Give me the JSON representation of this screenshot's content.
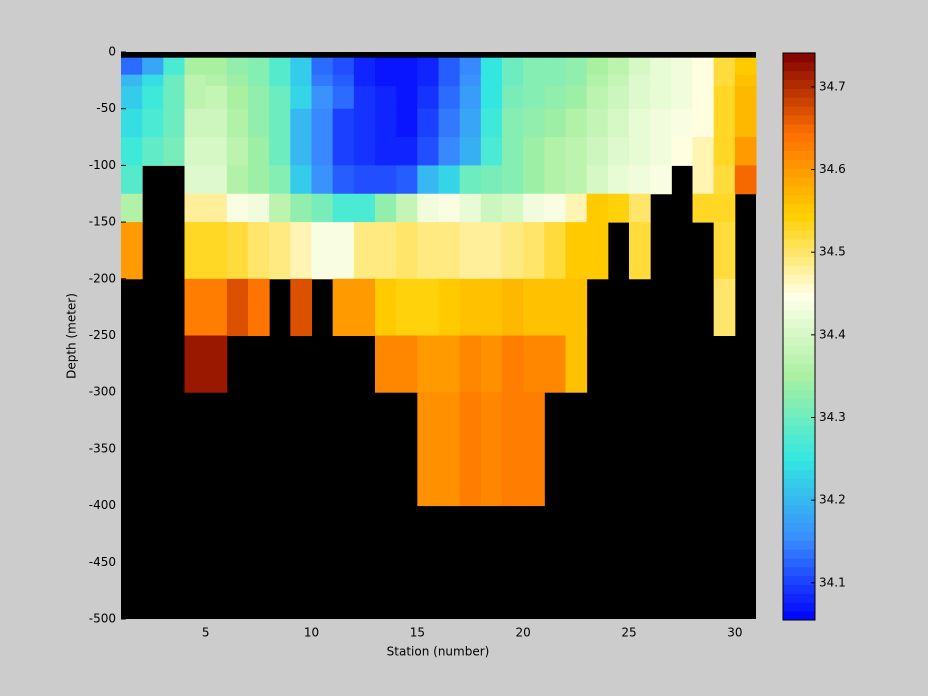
{
  "chart_data": {
    "type": "heatmap",
    "xlabel": "Station (number)",
    "ylabel": "Depth (meter)",
    "x_edges": [
      1,
      2,
      3,
      4,
      5,
      6,
      7,
      8,
      9,
      10,
      11,
      12,
      13,
      14,
      15,
      16,
      17,
      18,
      19,
      20,
      21,
      22,
      23,
      24,
      25,
      26,
      27,
      28,
      29,
      30,
      31
    ],
    "y_edges": [
      -5,
      -20,
      -30,
      -50,
      -75,
      -100,
      -125,
      -150,
      -200,
      -250,
      -300,
      -400,
      -500
    ],
    "z": [
      [
        34.13,
        34.18,
        34.27,
        34.35,
        34.35,
        34.33,
        34.32,
        34.28,
        34.22,
        34.13,
        34.11,
        34.08,
        34.07,
        34.07,
        34.08,
        34.12,
        34.15,
        34.25,
        34.3,
        34.32,
        34.32,
        34.33,
        34.35,
        34.37,
        34.4,
        34.42,
        34.43,
        34.45,
        34.52,
        34.55
      ],
      [
        34.2,
        34.24,
        34.3,
        34.37,
        34.36,
        34.34,
        34.32,
        34.28,
        34.22,
        34.14,
        34.12,
        34.08,
        34.07,
        34.07,
        34.08,
        34.12,
        34.16,
        34.25,
        34.3,
        34.32,
        34.32,
        34.33,
        34.36,
        34.38,
        34.41,
        34.42,
        34.43,
        34.45,
        34.52,
        34.56
      ],
      [
        34.22,
        34.26,
        34.3,
        34.37,
        34.38,
        34.35,
        34.33,
        34.3,
        34.23,
        34.16,
        34.13,
        34.09,
        34.08,
        34.07,
        34.09,
        34.13,
        34.17,
        34.25,
        34.31,
        34.32,
        34.33,
        34.34,
        34.37,
        34.39,
        34.41,
        34.42,
        34.43,
        34.45,
        34.53,
        34.57
      ],
      [
        34.24,
        34.27,
        34.3,
        34.39,
        34.39,
        34.36,
        34.33,
        34.3,
        34.2,
        34.15,
        34.1,
        34.09,
        34.08,
        34.07,
        34.1,
        34.14,
        34.18,
        34.26,
        34.32,
        34.33,
        34.34,
        34.36,
        34.38,
        34.4,
        34.42,
        34.43,
        34.44,
        34.45,
        34.53,
        34.57
      ],
      [
        34.26,
        34.29,
        34.31,
        34.4,
        34.4,
        34.37,
        34.34,
        34.3,
        34.2,
        34.15,
        34.1,
        34.09,
        34.08,
        34.08,
        34.11,
        34.15,
        34.19,
        34.27,
        34.32,
        34.34,
        34.36,
        34.37,
        34.39,
        34.41,
        34.42,
        34.43,
        34.45,
        34.47,
        34.53,
        34.6
      ],
      [
        34.28,
        null,
        null,
        34.41,
        34.41,
        34.36,
        34.34,
        34.32,
        34.22,
        34.16,
        34.12,
        34.11,
        34.11,
        34.12,
        34.2,
        34.23,
        34.3,
        34.31,
        34.32,
        34.34,
        34.36,
        34.37,
        34.4,
        34.42,
        34.43,
        34.44,
        null,
        34.47,
        34.52,
        34.65
      ],
      [
        34.36,
        null,
        null,
        34.48,
        34.48,
        34.44,
        34.43,
        34.37,
        34.33,
        34.31,
        34.27,
        34.27,
        34.33,
        34.38,
        34.43,
        34.44,
        34.42,
        34.39,
        34.4,
        34.43,
        34.44,
        34.47,
        34.55,
        34.54,
        34.5,
        null,
        null,
        34.53,
        34.53,
        null
      ],
      [
        34.6,
        null,
        null,
        34.53,
        34.53,
        34.52,
        34.5,
        34.49,
        34.47,
        34.44,
        34.44,
        34.49,
        34.49,
        34.5,
        34.49,
        34.49,
        34.48,
        34.48,
        34.49,
        34.5,
        34.52,
        34.55,
        34.55,
        null,
        34.52,
        null,
        null,
        null,
        34.52,
        null
      ],
      [
        null,
        null,
        null,
        34.63,
        34.63,
        34.67,
        34.64,
        null,
        34.67,
        null,
        34.6,
        34.6,
        34.55,
        34.54,
        34.54,
        34.55,
        34.56,
        34.56,
        34.57,
        34.56,
        34.56,
        34.56,
        null,
        null,
        null,
        null,
        null,
        null,
        34.5,
        null
      ],
      [
        null,
        null,
        null,
        34.72,
        34.72,
        null,
        null,
        null,
        null,
        null,
        null,
        null,
        34.62,
        34.62,
        34.6,
        34.6,
        34.62,
        34.61,
        34.63,
        34.62,
        34.62,
        34.56,
        null,
        null,
        null,
        null,
        null,
        null,
        null,
        null
      ],
      [
        null,
        null,
        null,
        null,
        null,
        null,
        null,
        null,
        null,
        null,
        null,
        null,
        null,
        null,
        34.61,
        34.61,
        34.63,
        34.62,
        34.63,
        34.63,
        null,
        null,
        null,
        null,
        null,
        null,
        null,
        null,
        null,
        null
      ],
      [
        null,
        null,
        null,
        null,
        null,
        null,
        null,
        null,
        null,
        null,
        null,
        null,
        null,
        null,
        null,
        null,
        null,
        null,
        null,
        null,
        null,
        null,
        null,
        null,
        null,
        null,
        null,
        null,
        null,
        null
      ]
    ],
    "xlim": [
      1,
      31
    ],
    "xticks": [
      5,
      10,
      15,
      20,
      25,
      30
    ],
    "ylim": [
      -500,
      0
    ],
    "yticks": [
      0,
      -50,
      -100,
      -150,
      -200,
      -250,
      -300,
      -350,
      -400,
      -450,
      -500
    ],
    "clim": [
      34.055,
      34.741
    ],
    "cticks": [
      34.1,
      34.2,
      34.3,
      34.4,
      34.5,
      34.6,
      34.7
    ],
    "colormap": [
      "#0000ff",
      "#3a8cff",
      "#33e8e0",
      "#a8f0a0",
      "#ffffe8",
      "#ffd000",
      "#ff7000",
      "#800000"
    ],
    "nan_color": "#000000"
  }
}
